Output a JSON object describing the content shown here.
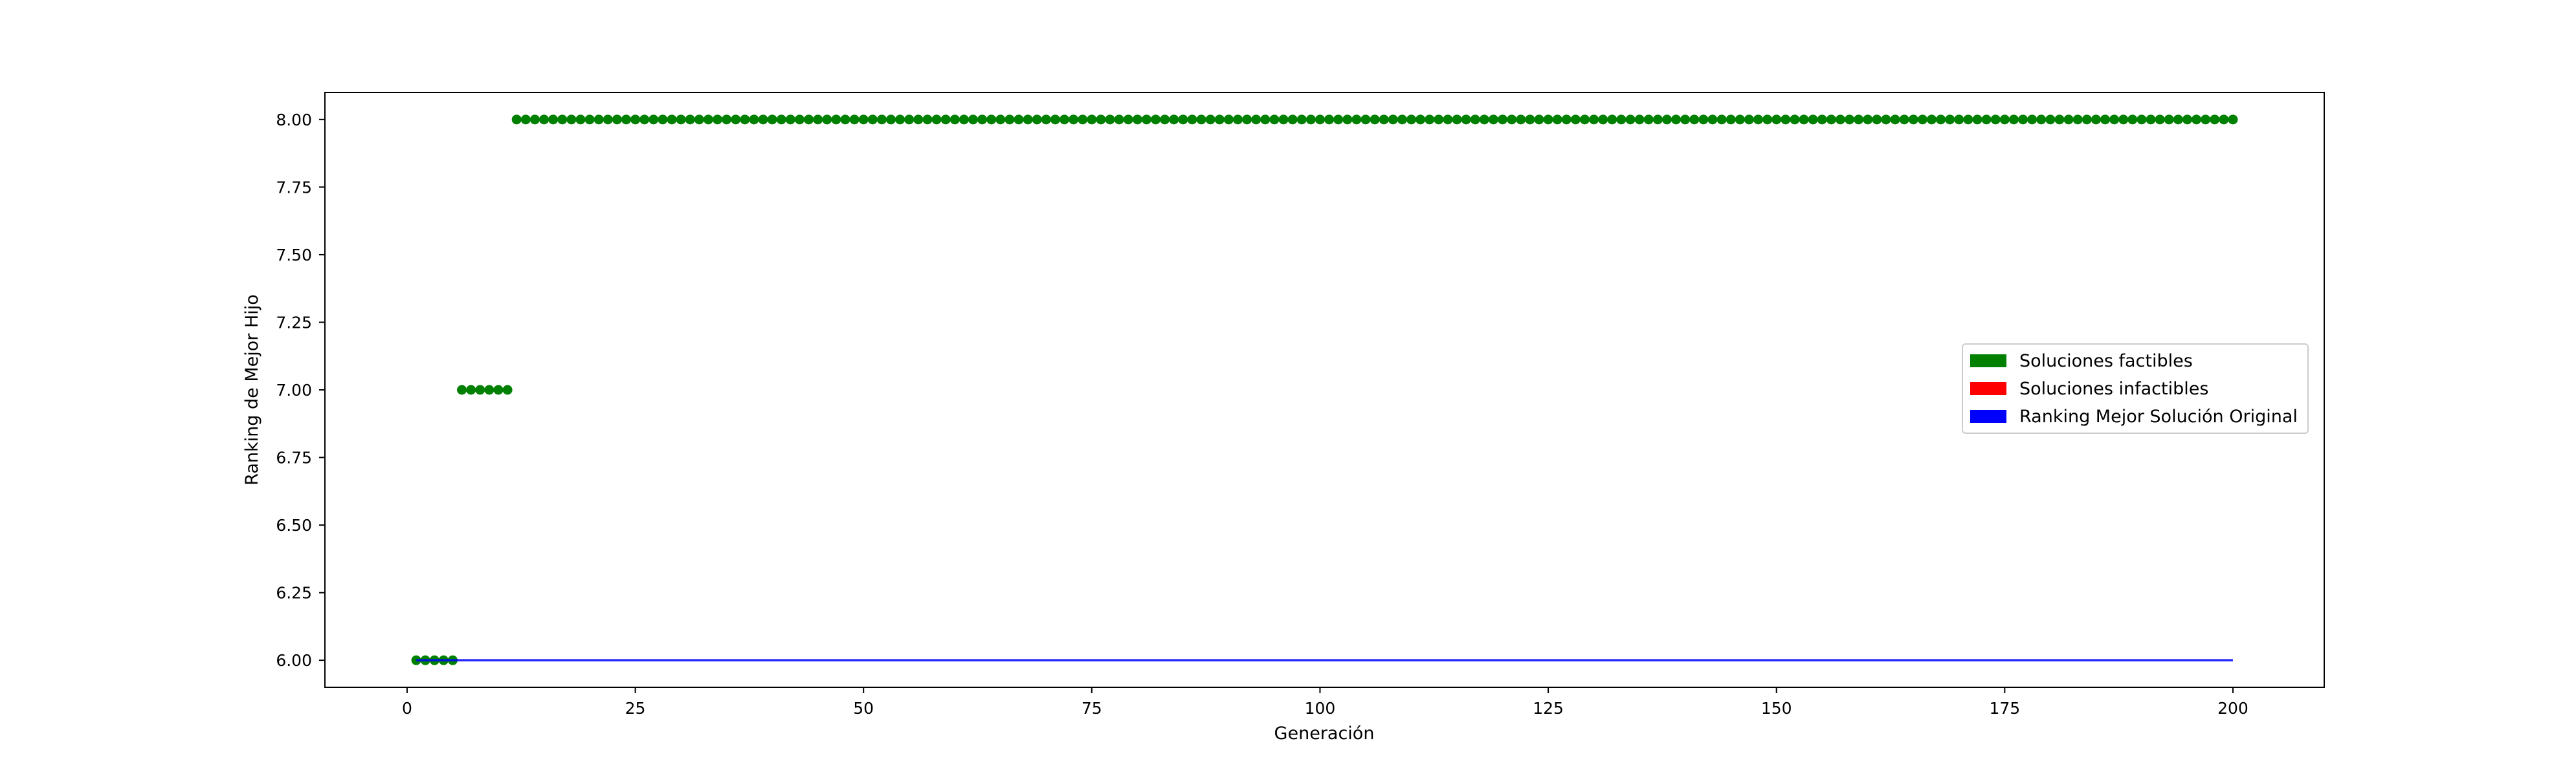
{
  "chart_data": {
    "type": "scatter",
    "title": "",
    "xlabel": "Generación",
    "ylabel": "Ranking de Mejor Hijo",
    "xlim": [
      -9,
      210
    ],
    "ylim": [
      5.9,
      8.1
    ],
    "xticks": [
      0,
      25,
      50,
      75,
      100,
      125,
      150,
      175,
      200
    ],
    "yticks": [
      6.0,
      6.25,
      6.5,
      6.75,
      7.0,
      7.25,
      7.5,
      7.75,
      8.0
    ],
    "ytick_labels": [
      "6.00",
      "6.25",
      "6.50",
      "6.75",
      "7.00",
      "7.25",
      "7.50",
      "7.75",
      "8.00"
    ],
    "xtick_labels": [
      "0",
      "25",
      "50",
      "75",
      "100",
      "125",
      "150",
      "175",
      "200"
    ],
    "grid": false,
    "legend_position": "center-right",
    "series": [
      {
        "name": "Soluciones factibles",
        "color": "#008000",
        "kind": "points",
        "segments": [
          {
            "x_start": 1,
            "x_end": 5,
            "y": 6.0
          },
          {
            "x_start": 6,
            "x_end": 11,
            "y": 7.0
          },
          {
            "x_start": 12,
            "x_end": 200,
            "y": 8.0
          }
        ]
      },
      {
        "name": "Soluciones infactibles",
        "color": "#ff0000",
        "kind": "points",
        "segments": []
      },
      {
        "name": "Ranking Mejor Solución Original",
        "color": "#0000ff",
        "kind": "line",
        "x": [
          1,
          200
        ],
        "y": [
          6.0,
          6.0
        ]
      }
    ]
  }
}
